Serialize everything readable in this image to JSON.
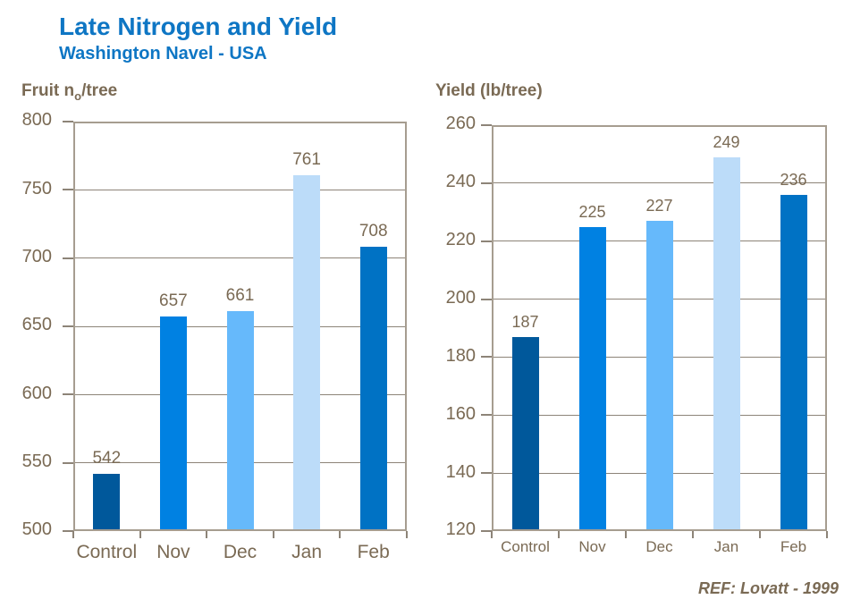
{
  "page": {
    "title": "Late Nitrogen and Yield",
    "subtitle": "Washington Navel - USA",
    "reference": "REF: Lovatt - 1999",
    "colors": {
      "title_blue": "#0e76c4",
      "axis_text": "#7a6a54",
      "grid_line": "#8d8478",
      "plot_border": "#a69d90"
    }
  },
  "chart_data": [
    {
      "type": "bar",
      "title": "Fruit no/tree",
      "title_parts": {
        "prefix": "Fruit n",
        "sub": "o",
        "suffix": "/tree"
      },
      "categories": [
        "Control",
        "Nov",
        "Dec",
        "Jan",
        "Feb"
      ],
      "values": [
        542,
        657,
        661,
        761,
        708
      ],
      "ylim": [
        500,
        800
      ],
      "ytick": 50,
      "grid": true,
      "legend": "none",
      "bar_colors": [
        "#00589b",
        "#0081e2",
        "#66b9fb",
        "#bcdcf9",
        "#0072c4"
      ]
    },
    {
      "type": "bar",
      "title": "Yield (lb/tree)",
      "categories": [
        "Control",
        "Nov",
        "Dec",
        "Jan",
        "Feb"
      ],
      "values": [
        187,
        225,
        227,
        249,
        236
      ],
      "ylim": [
        120,
        260
      ],
      "ytick": 20,
      "grid": true,
      "legend": "none",
      "bar_colors": [
        "#00589b",
        "#0081e2",
        "#66b9fb",
        "#bcdcf9",
        "#0072c4"
      ]
    }
  ]
}
